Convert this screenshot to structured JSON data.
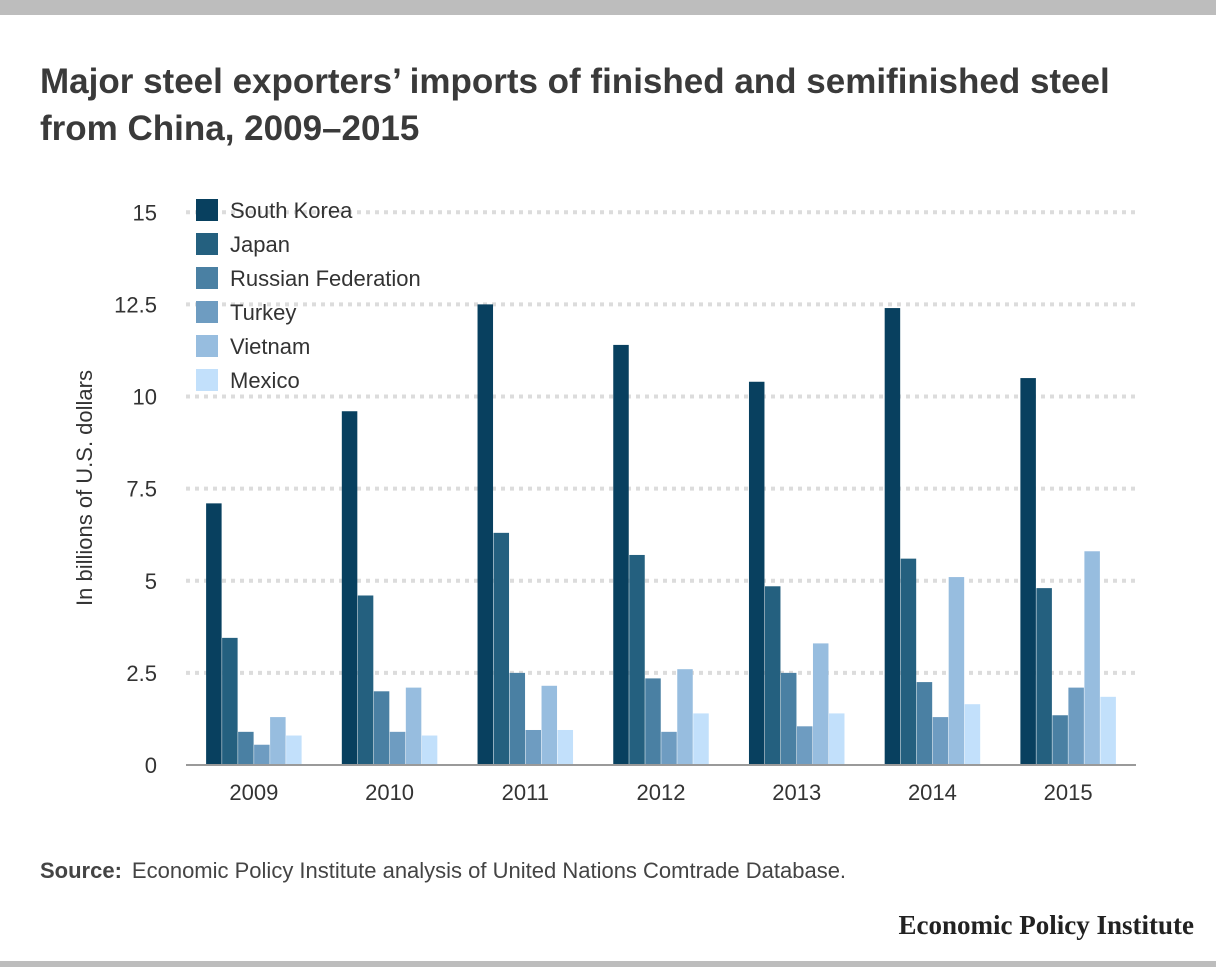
{
  "title": "Major steel exporters’ imports of finished and semifinished steel from China, 2009–2015",
  "source_label": "Source:",
  "source_text": "Economic Policy Institute analysis of United Nations Comtrade Database.",
  "brand": "Economic Policy Institute",
  "chart_data": {
    "type": "bar",
    "categories": [
      "2009",
      "2010",
      "2011",
      "2012",
      "2013",
      "2014",
      "2015"
    ],
    "series": [
      {
        "name": "South Korea",
        "color": "#08405f",
        "values": [
          7.1,
          9.6,
          12.5,
          11.4,
          10.4,
          12.4,
          10.5
        ]
      },
      {
        "name": "Japan",
        "color": "#24607f",
        "values": [
          3.45,
          4.6,
          6.3,
          5.7,
          4.85,
          5.6,
          4.8
        ]
      },
      {
        "name": "Russian Federation",
        "color": "#4a80a3",
        "values": [
          0.9,
          2.0,
          2.5,
          2.35,
          2.5,
          2.25,
          1.35
        ]
      },
      {
        "name": "Turkey",
        "color": "#6e9cc1",
        "values": [
          0.55,
          0.9,
          0.95,
          0.9,
          1.05,
          1.3,
          2.1
        ]
      },
      {
        "name": "Vietnam",
        "color": "#97bddf",
        "values": [
          1.3,
          2.1,
          2.15,
          2.6,
          3.3,
          5.1,
          5.8
        ]
      },
      {
        "name": "Mexico",
        "color": "#c2e0fb",
        "values": [
          0.8,
          0.8,
          0.95,
          1.4,
          1.4,
          1.65,
          1.85
        ]
      }
    ],
    "ylabel": "In billions of U.S. dollars",
    "xlabel": "",
    "ylim": [
      0,
      15
    ],
    "yticks": [
      0,
      2.5,
      5,
      7.5,
      10,
      12.5,
      15
    ],
    "ytick_labels": [
      "0",
      "2.5",
      "5",
      "7.5",
      "10",
      "12.5",
      "15"
    ],
    "grid": true,
    "legend_position": "top-left"
  }
}
